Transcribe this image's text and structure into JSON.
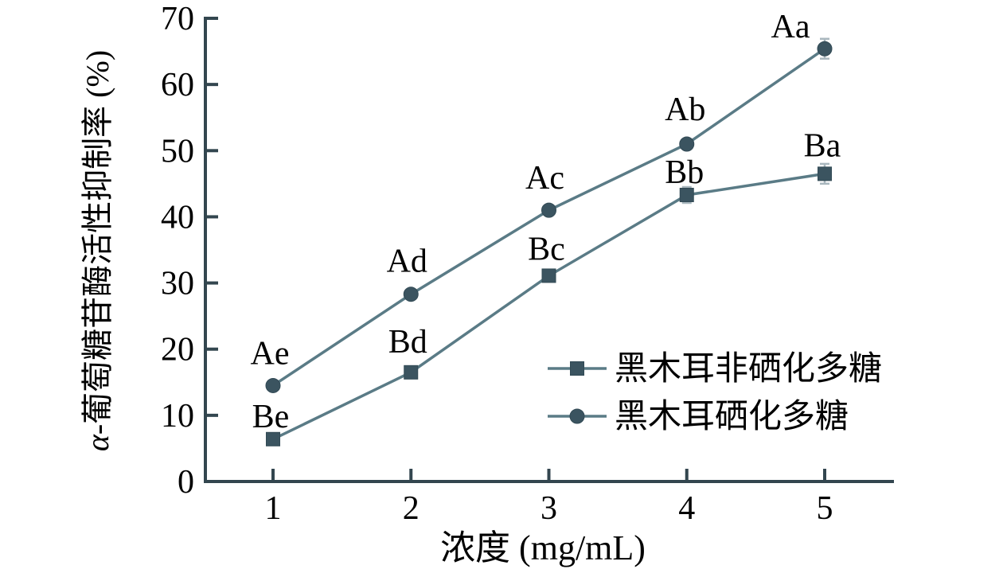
{
  "chart_data": {
    "type": "line",
    "title": "",
    "x": [
      1,
      2,
      3,
      4,
      5
    ],
    "xlabel": "浓度 (mg/mL)",
    "ylabel": "α-葡萄糖苷酶活性抑制率 (%)",
    "ylabel_parts": {
      "alpha": "α",
      "rest": "-葡萄糖苷酶活性抑制率 (%)"
    },
    "xlim": [
      0.5,
      5.5
    ],
    "ylim": [
      0,
      70
    ],
    "xticks": [
      "1",
      "2",
      "3",
      "4",
      "5"
    ],
    "yticks": [
      "0",
      "10",
      "20",
      "30",
      "40",
      "50",
      "60",
      "70"
    ],
    "grid": false,
    "legend_position": "inside-lower-right",
    "series": [
      {
        "name": "黑木耳非硒化多糖",
        "marker": "square",
        "values": [
          6.4,
          16.5,
          31.1,
          43.3,
          46.5
        ],
        "errors": [
          0,
          0,
          0,
          1.2,
          1.5
        ],
        "point_labels": [
          "Be",
          "Bd",
          "Bc",
          "Bb",
          "Ba"
        ],
        "label_offsets": [
          [
            -3,
            -29
          ],
          [
            -4,
            -39
          ],
          [
            -3,
            -34
          ],
          [
            -3,
            -29
          ],
          [
            -3,
            -36
          ]
        ],
        "line_color": "#5a7b86",
        "marker_color": "#3b5460"
      },
      {
        "name": "黑木耳硒化多糖",
        "marker": "circle",
        "values": [
          14.5,
          28.3,
          41,
          51,
          65.4
        ],
        "errors": [
          0,
          0,
          0,
          0,
          1.5
        ],
        "point_labels": [
          "Ae",
          "Ad",
          "Ac",
          "Ab",
          "Aa"
        ],
        "label_offsets": [
          [
            -4,
            -41
          ],
          [
            -5,
            -42
          ],
          [
            -5,
            -41
          ],
          [
            -2,
            -44
          ],
          [
            -43,
            -28
          ]
        ],
        "line_color": "#5a7b86",
        "marker_color": "#3b5460"
      }
    ],
    "colors": {
      "axis": "#33464f",
      "text": "#000000",
      "error_bar": "#a9b7be",
      "background": "#ffffff"
    }
  }
}
